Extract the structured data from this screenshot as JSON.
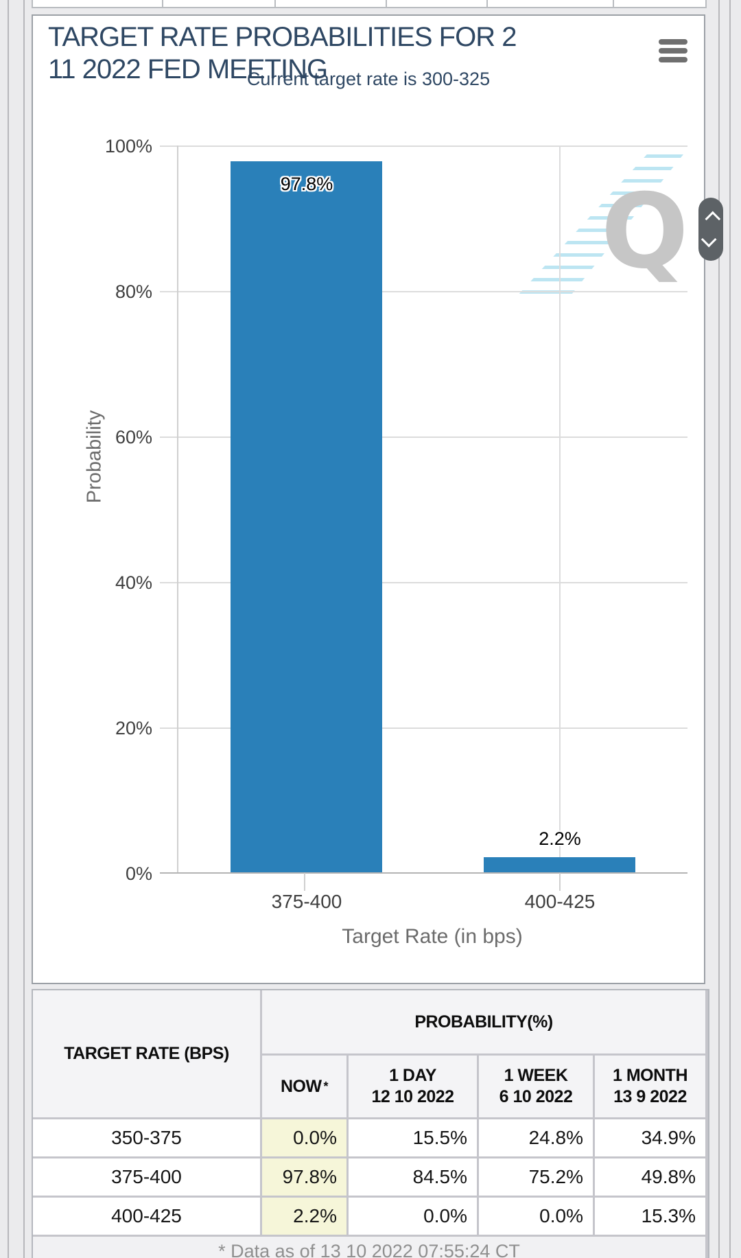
{
  "chart": {
    "title": "TARGET RATE PROBABILITIES FOR 2 11 2022 FED MEETING",
    "subtitle": "Current target rate is 300-325",
    "watermark": "Q",
    "menu_icon": "hamburger-icon"
  },
  "chart_data": {
    "type": "bar",
    "title": "TARGET RATE PROBABILITIES FOR 2 11 2022 FED MEETING",
    "subtitle": "Current target rate is 300-325",
    "categories": [
      "375-400",
      "400-425"
    ],
    "values": [
      97.8,
      2.2
    ],
    "labels": [
      "97.8%",
      "2.2%"
    ],
    "xlabel": "Target Rate (in bps)",
    "ylabel": "Probability",
    "ylim": [
      0,
      100
    ],
    "yticks": [
      "100%",
      "80%",
      "60%",
      "40%",
      "20%",
      "0%"
    ],
    "grid": true,
    "legend": "none",
    "bar_color": "#2a80b9"
  },
  "table": {
    "col1_header": "TARGET RATE (BPS)",
    "group_header": "PROBABILITY(%)",
    "sub_headers": [
      {
        "line1": "NOW",
        "note": "*",
        "line2": ""
      },
      {
        "line1": "1 DAY",
        "line2": "12 10 2022"
      },
      {
        "line1": "1 WEEK",
        "line2": "6 10 2022"
      },
      {
        "line1": "1 MONTH",
        "line2": "13 9 2022"
      }
    ],
    "rows": [
      {
        "rate": "350-375",
        "now": "0.0%",
        "day": "15.5%",
        "week": "24.8%",
        "month": "34.9%"
      },
      {
        "rate": "375-400",
        "now": "97.8%",
        "day": "84.5%",
        "week": "75.2%",
        "month": "49.8%"
      },
      {
        "rate": "400-425",
        "now": "2.2%",
        "day": "0.0%",
        "week": "0.0%",
        "month": "15.3%"
      }
    ],
    "footnote": "* Data as of 13 10 2022 07:55:24 CT",
    "now_highlight": "#f6f6d9"
  },
  "scroll_widget": {
    "up": "scroll up",
    "down": "scroll down"
  }
}
